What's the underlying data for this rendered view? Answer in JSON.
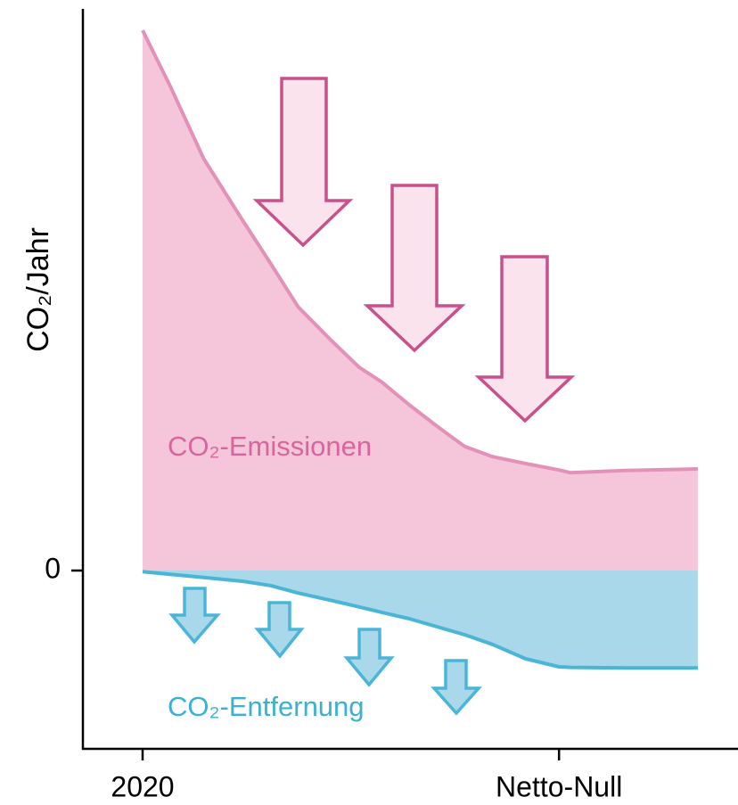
{
  "chart_data": {
    "type": "area",
    "ylabel": "CO₂/Jahr",
    "x": [
      0,
      5,
      11,
      18,
      23,
      28,
      34,
      39,
      43,
      48,
      53,
      58,
      63,
      69,
      75,
      77,
      87,
      100
    ],
    "series": [
      {
        "name": "CO₂-Emissionen",
        "color": "#e291b8",
        "fill": "#f5c6da",
        "values": [
          101,
          90.5,
          77,
          65.5,
          57.5,
          49.3,
          43,
          38,
          35.3,
          31,
          27,
          23.2,
          21.3,
          20,
          18.8,
          18.3,
          18.7,
          19
        ]
      },
      {
        "name": "CO₂-Entfernung",
        "color": "#4ab5d6",
        "fill": "#a8d8ea",
        "values": [
          -0.2,
          -0.7,
          -1.3,
          -2,
          -2.8,
          -4.2,
          -5.6,
          -6.8,
          -7.8,
          -9,
          -10.5,
          -12,
          -13.8,
          -16.5,
          -18,
          -18.1,
          -18.2,
          -18.2
        ]
      }
    ],
    "xlim": [
      -10,
      106
    ],
    "xticks": [
      {
        "value": 0,
        "label": "2020"
      },
      {
        "value": 75,
        "label": "Netto-Null"
      }
    ],
    "ylim": [
      -33,
      105
    ],
    "yticks": [
      0
    ]
  }
}
